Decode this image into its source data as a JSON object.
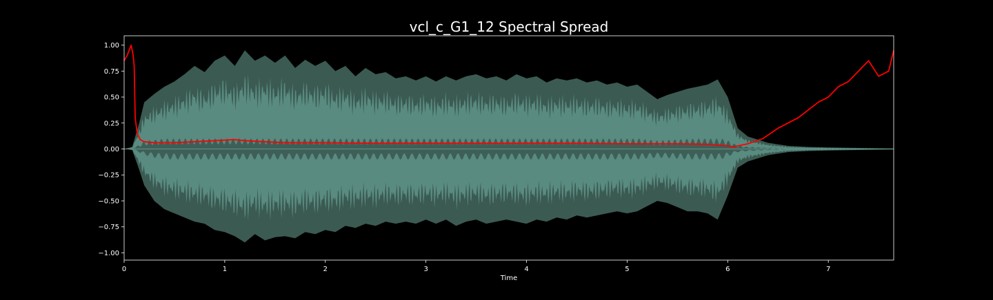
{
  "chart_data": {
    "type": "line",
    "title": "vcl_c_G1_12 Spectral Spread",
    "xlabel": "Time",
    "ylabel": "",
    "xlim": [
      0,
      7.65
    ],
    "ylim": [
      -1.07,
      1.09
    ],
    "x_ticks": [
      0,
      1,
      2,
      3,
      4,
      5,
      6,
      7
    ],
    "x_tick_labels": [
      "0",
      "1",
      "2",
      "3",
      "4",
      "5",
      "6",
      "7"
    ],
    "y_ticks": [
      1.0,
      0.75,
      0.5,
      0.25,
      0.0,
      -0.25,
      -0.5,
      -0.75,
      -1.0
    ],
    "y_tick_labels": [
      "1.00",
      "0.75",
      "0.50",
      "0.25",
      "0.00",
      "−0.25",
      "−0.50",
      "−0.75",
      "−1.00"
    ],
    "grid": false,
    "background": "#000000",
    "foreground": "#ffffff",
    "series": [
      {
        "kind": "waveform-envelope",
        "color_outer": "#3b5a52",
        "color_inner": "#5f9488",
        "points": [
          [
            0.0,
            0.0,
            0.0
          ],
          [
            0.08,
            0.02,
            0.01
          ],
          [
            0.15,
            0.25,
            0.2
          ],
          [
            0.2,
            0.45,
            0.35
          ],
          [
            0.3,
            0.53,
            0.5
          ],
          [
            0.4,
            0.6,
            0.58
          ],
          [
            0.5,
            0.65,
            0.62
          ],
          [
            0.6,
            0.72,
            0.66
          ],
          [
            0.7,
            0.8,
            0.7
          ],
          [
            0.8,
            0.74,
            0.72
          ],
          [
            0.9,
            0.85,
            0.78
          ],
          [
            1.0,
            0.9,
            0.8
          ],
          [
            1.1,
            0.8,
            0.84
          ],
          [
            1.2,
            0.95,
            0.9
          ],
          [
            1.3,
            0.85,
            0.82
          ],
          [
            1.4,
            0.9,
            0.88
          ],
          [
            1.5,
            0.83,
            0.85
          ],
          [
            1.6,
            0.9,
            0.84
          ],
          [
            1.7,
            0.78,
            0.86
          ],
          [
            1.8,
            0.86,
            0.8
          ],
          [
            1.9,
            0.8,
            0.82
          ],
          [
            2.0,
            0.85,
            0.78
          ],
          [
            2.1,
            0.75,
            0.8
          ],
          [
            2.2,
            0.8,
            0.74
          ],
          [
            2.3,
            0.7,
            0.76
          ],
          [
            2.4,
            0.78,
            0.72
          ],
          [
            2.5,
            0.72,
            0.74
          ],
          [
            2.6,
            0.74,
            0.7
          ],
          [
            2.7,
            0.68,
            0.72
          ],
          [
            2.8,
            0.7,
            0.7
          ],
          [
            2.9,
            0.66,
            0.72
          ],
          [
            3.0,
            0.7,
            0.68
          ],
          [
            3.1,
            0.65,
            0.72
          ],
          [
            3.2,
            0.7,
            0.68
          ],
          [
            3.3,
            0.66,
            0.74
          ],
          [
            3.4,
            0.7,
            0.7
          ],
          [
            3.5,
            0.72,
            0.68
          ],
          [
            3.6,
            0.68,
            0.72
          ],
          [
            3.7,
            0.7,
            0.7
          ],
          [
            3.8,
            0.66,
            0.68
          ],
          [
            3.9,
            0.72,
            0.7
          ],
          [
            4.0,
            0.68,
            0.72
          ],
          [
            4.1,
            0.7,
            0.68
          ],
          [
            4.2,
            0.64,
            0.7
          ],
          [
            4.3,
            0.68,
            0.66
          ],
          [
            4.4,
            0.66,
            0.68
          ],
          [
            4.5,
            0.68,
            0.64
          ],
          [
            4.6,
            0.64,
            0.66
          ],
          [
            4.7,
            0.66,
            0.64
          ],
          [
            4.8,
            0.62,
            0.62
          ],
          [
            4.9,
            0.64,
            0.6
          ],
          [
            5.0,
            0.6,
            0.62
          ],
          [
            5.1,
            0.62,
            0.6
          ],
          [
            5.2,
            0.55,
            0.55
          ],
          [
            5.3,
            0.48,
            0.5
          ],
          [
            5.4,
            0.52,
            0.52
          ],
          [
            5.5,
            0.55,
            0.56
          ],
          [
            5.6,
            0.58,
            0.6
          ],
          [
            5.7,
            0.6,
            0.6
          ],
          [
            5.8,
            0.62,
            0.62
          ],
          [
            5.9,
            0.67,
            0.68
          ],
          [
            6.0,
            0.5,
            0.45
          ],
          [
            6.1,
            0.2,
            0.18
          ],
          [
            6.2,
            0.12,
            0.12
          ],
          [
            6.4,
            0.06,
            0.06
          ],
          [
            6.6,
            0.03,
            0.03
          ],
          [
            6.8,
            0.02,
            0.02
          ],
          [
            7.0,
            0.015,
            0.015
          ],
          [
            7.3,
            0.01,
            0.01
          ],
          [
            7.65,
            0.005,
            0.005
          ]
        ]
      },
      {
        "kind": "line",
        "color": "#ff0000",
        "points": [
          [
            0.0,
            0.85
          ],
          [
            0.03,
            0.9
          ],
          [
            0.05,
            0.95
          ],
          [
            0.07,
            1.0
          ],
          [
            0.09,
            0.9
          ],
          [
            0.1,
            0.8
          ],
          [
            0.11,
            0.3
          ],
          [
            0.13,
            0.15
          ],
          [
            0.16,
            0.09
          ],
          [
            0.2,
            0.07
          ],
          [
            0.3,
            0.06
          ],
          [
            0.5,
            0.06
          ],
          [
            0.7,
            0.07
          ],
          [
            0.9,
            0.08
          ],
          [
            1.1,
            0.09
          ],
          [
            1.2,
            0.08
          ],
          [
            1.4,
            0.07
          ],
          [
            1.6,
            0.06
          ],
          [
            1.8,
            0.06
          ],
          [
            2.0,
            0.06
          ],
          [
            2.5,
            0.055
          ],
          [
            3.0,
            0.055
          ],
          [
            3.5,
            0.055
          ],
          [
            4.0,
            0.055
          ],
          [
            4.5,
            0.055
          ],
          [
            5.0,
            0.05
          ],
          [
            5.5,
            0.05
          ],
          [
            5.8,
            0.045
          ],
          [
            6.0,
            0.03
          ],
          [
            6.05,
            0.02
          ],
          [
            6.2,
            0.05
          ],
          [
            6.35,
            0.1
          ],
          [
            6.5,
            0.2
          ],
          [
            6.7,
            0.3
          ],
          [
            6.9,
            0.45
          ],
          [
            7.0,
            0.5
          ],
          [
            7.1,
            0.6
          ],
          [
            7.2,
            0.65
          ],
          [
            7.3,
            0.75
          ],
          [
            7.4,
            0.85
          ],
          [
            7.5,
            0.7
          ],
          [
            7.6,
            0.75
          ],
          [
            7.65,
            0.95
          ]
        ]
      }
    ]
  }
}
